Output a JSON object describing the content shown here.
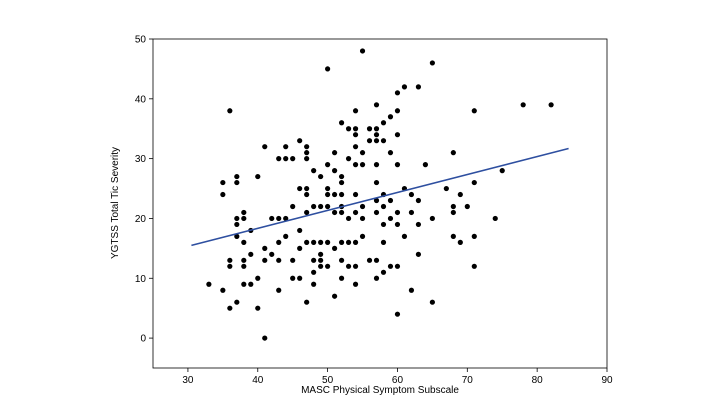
{
  "chart_data": {
    "type": "scatter",
    "xlabel": "MASC Physical Symptom Subscale",
    "ylabel": "YGTSS Total Tic Severity",
    "xlim": [
      25,
      90
    ],
    "ylim": [
      -5,
      50
    ],
    "xticks": [
      30,
      40,
      50,
      60,
      70,
      80,
      90
    ],
    "yticks": [
      0,
      10,
      20,
      30,
      40,
      50
    ],
    "grid": false,
    "colors": {
      "points": "#000000",
      "fit_line": "#2e4fa0"
    },
    "trendline": {
      "x": [
        30.5,
        84.5
      ],
      "y": [
        15.5,
        31.7
      ]
    },
    "points": [
      {
        "x": 33,
        "y": 9
      },
      {
        "x": 35,
        "y": 26
      },
      {
        "x": 35,
        "y": 24
      },
      {
        "x": 35,
        "y": 8
      },
      {
        "x": 36,
        "y": 38
      },
      {
        "x": 36,
        "y": 13
      },
      {
        "x": 36,
        "y": 12
      },
      {
        "x": 36,
        "y": 5
      },
      {
        "x": 37,
        "y": 27
      },
      {
        "x": 37,
        "y": 26
      },
      {
        "x": 37,
        "y": 20
      },
      {
        "x": 37,
        "y": 19
      },
      {
        "x": 37,
        "y": 17
      },
      {
        "x": 37,
        "y": 6
      },
      {
        "x": 38,
        "y": 21
      },
      {
        "x": 38,
        "y": 20
      },
      {
        "x": 38,
        "y": 16
      },
      {
        "x": 38,
        "y": 13
      },
      {
        "x": 38,
        "y": 12
      },
      {
        "x": 38,
        "y": 9
      },
      {
        "x": 39,
        "y": 18
      },
      {
        "x": 39,
        "y": 14
      },
      {
        "x": 39,
        "y": 9
      },
      {
        "x": 40,
        "y": 27
      },
      {
        "x": 40,
        "y": 10
      },
      {
        "x": 40,
        "y": 5
      },
      {
        "x": 41,
        "y": 32
      },
      {
        "x": 41,
        "y": 15
      },
      {
        "x": 41,
        "y": 13
      },
      {
        "x": 41,
        "y": 0
      },
      {
        "x": 42,
        "y": 20
      },
      {
        "x": 42,
        "y": 14
      },
      {
        "x": 43,
        "y": 30
      },
      {
        "x": 43,
        "y": 20
      },
      {
        "x": 43,
        "y": 16
      },
      {
        "x": 43,
        "y": 13
      },
      {
        "x": 43,
        "y": 8
      },
      {
        "x": 44,
        "y": 32
      },
      {
        "x": 44,
        "y": 30
      },
      {
        "x": 44,
        "y": 20
      },
      {
        "x": 44,
        "y": 17
      },
      {
        "x": 45,
        "y": 30
      },
      {
        "x": 45,
        "y": 22
      },
      {
        "x": 45,
        "y": 13
      },
      {
        "x": 45,
        "y": 10
      },
      {
        "x": 46,
        "y": 33
      },
      {
        "x": 46,
        "y": 25
      },
      {
        "x": 46,
        "y": 18
      },
      {
        "x": 46,
        "y": 15
      },
      {
        "x": 46,
        "y": 10
      },
      {
        "x": 47,
        "y": 32
      },
      {
        "x": 47,
        "y": 31
      },
      {
        "x": 47,
        "y": 30
      },
      {
        "x": 47,
        "y": 25
      },
      {
        "x": 47,
        "y": 24
      },
      {
        "x": 47,
        "y": 21
      },
      {
        "x": 47,
        "y": 16
      },
      {
        "x": 47,
        "y": 6
      },
      {
        "x": 48,
        "y": 28
      },
      {
        "x": 48,
        "y": 22
      },
      {
        "x": 48,
        "y": 16
      },
      {
        "x": 48,
        "y": 13
      },
      {
        "x": 48,
        "y": 11
      },
      {
        "x": 48,
        "y": 9
      },
      {
        "x": 49,
        "y": 27
      },
      {
        "x": 49,
        "y": 22
      },
      {
        "x": 49,
        "y": 16
      },
      {
        "x": 49,
        "y": 14
      },
      {
        "x": 49,
        "y": 13
      },
      {
        "x": 49,
        "y": 12
      },
      {
        "x": 50,
        "y": 45
      },
      {
        "x": 50,
        "y": 29
      },
      {
        "x": 50,
        "y": 25
      },
      {
        "x": 50,
        "y": 24
      },
      {
        "x": 50,
        "y": 22
      },
      {
        "x": 50,
        "y": 16
      },
      {
        "x": 50,
        "y": 12
      },
      {
        "x": 51,
        "y": 31
      },
      {
        "x": 51,
        "y": 28
      },
      {
        "x": 51,
        "y": 24
      },
      {
        "x": 51,
        "y": 21
      },
      {
        "x": 51,
        "y": 15
      },
      {
        "x": 51,
        "y": 7
      },
      {
        "x": 52,
        "y": 36
      },
      {
        "x": 52,
        "y": 27
      },
      {
        "x": 52,
        "y": 26
      },
      {
        "x": 52,
        "y": 24
      },
      {
        "x": 52,
        "y": 22
      },
      {
        "x": 52,
        "y": 21
      },
      {
        "x": 52,
        "y": 16
      },
      {
        "x": 52,
        "y": 13
      },
      {
        "x": 52,
        "y": 10
      },
      {
        "x": 53,
        "y": 35
      },
      {
        "x": 53,
        "y": 30
      },
      {
        "x": 53,
        "y": 20
      },
      {
        "x": 53,
        "y": 16
      },
      {
        "x": 53,
        "y": 12
      },
      {
        "x": 54,
        "y": 38
      },
      {
        "x": 54,
        "y": 35
      },
      {
        "x": 54,
        "y": 34
      },
      {
        "x": 54,
        "y": 32
      },
      {
        "x": 54,
        "y": 29
      },
      {
        "x": 54,
        "y": 24
      },
      {
        "x": 54,
        "y": 21
      },
      {
        "x": 54,
        "y": 16
      },
      {
        "x": 54,
        "y": 12
      },
      {
        "x": 54,
        "y": 9
      },
      {
        "x": 55,
        "y": 48
      },
      {
        "x": 55,
        "y": 31
      },
      {
        "x": 55,
        "y": 29
      },
      {
        "x": 55,
        "y": 22
      },
      {
        "x": 55,
        "y": 20
      },
      {
        "x": 55,
        "y": 17
      },
      {
        "x": 56,
        "y": 35
      },
      {
        "x": 56,
        "y": 33
      },
      {
        "x": 56,
        "y": 13
      },
      {
        "x": 57,
        "y": 39
      },
      {
        "x": 57,
        "y": 35
      },
      {
        "x": 57,
        "y": 34
      },
      {
        "x": 57,
        "y": 33
      },
      {
        "x": 57,
        "y": 29
      },
      {
        "x": 57,
        "y": 26
      },
      {
        "x": 57,
        "y": 23
      },
      {
        "x": 57,
        "y": 21
      },
      {
        "x": 57,
        "y": 13
      },
      {
        "x": 57,
        "y": 10
      },
      {
        "x": 58,
        "y": 36
      },
      {
        "x": 58,
        "y": 33
      },
      {
        "x": 58,
        "y": 24
      },
      {
        "x": 58,
        "y": 22
      },
      {
        "x": 58,
        "y": 19
      },
      {
        "x": 58,
        "y": 16
      },
      {
        "x": 58,
        "y": 11
      },
      {
        "x": 59,
        "y": 37
      },
      {
        "x": 59,
        "y": 31
      },
      {
        "x": 59,
        "y": 23
      },
      {
        "x": 59,
        "y": 20
      },
      {
        "x": 59,
        "y": 12
      },
      {
        "x": 60,
        "y": 41
      },
      {
        "x": 60,
        "y": 38
      },
      {
        "x": 60,
        "y": 34
      },
      {
        "x": 60,
        "y": 29
      },
      {
        "x": 60,
        "y": 21
      },
      {
        "x": 60,
        "y": 19
      },
      {
        "x": 60,
        "y": 12
      },
      {
        "x": 60,
        "y": 4
      },
      {
        "x": 61,
        "y": 42
      },
      {
        "x": 61,
        "y": 25
      },
      {
        "x": 61,
        "y": 17
      },
      {
        "x": 62,
        "y": 24
      },
      {
        "x": 62,
        "y": 21
      },
      {
        "x": 62,
        "y": 8
      },
      {
        "x": 63,
        "y": 42
      },
      {
        "x": 63,
        "y": 23
      },
      {
        "x": 63,
        "y": 19
      },
      {
        "x": 63,
        "y": 14
      },
      {
        "x": 64,
        "y": 29
      },
      {
        "x": 65,
        "y": 46
      },
      {
        "x": 65,
        "y": 20
      },
      {
        "x": 65,
        "y": 6
      },
      {
        "x": 67,
        "y": 25
      },
      {
        "x": 68,
        "y": 31
      },
      {
        "x": 68,
        "y": 22
      },
      {
        "x": 68,
        "y": 21
      },
      {
        "x": 68,
        "y": 17
      },
      {
        "x": 69,
        "y": 24
      },
      {
        "x": 69,
        "y": 16
      },
      {
        "x": 70,
        "y": 22
      },
      {
        "x": 71,
        "y": 38
      },
      {
        "x": 71,
        "y": 26
      },
      {
        "x": 71,
        "y": 17
      },
      {
        "x": 71,
        "y": 12
      },
      {
        "x": 74,
        "y": 20
      },
      {
        "x": 75,
        "y": 28
      },
      {
        "x": 78,
        "y": 39
      },
      {
        "x": 82,
        "y": 39
      }
    ]
  }
}
